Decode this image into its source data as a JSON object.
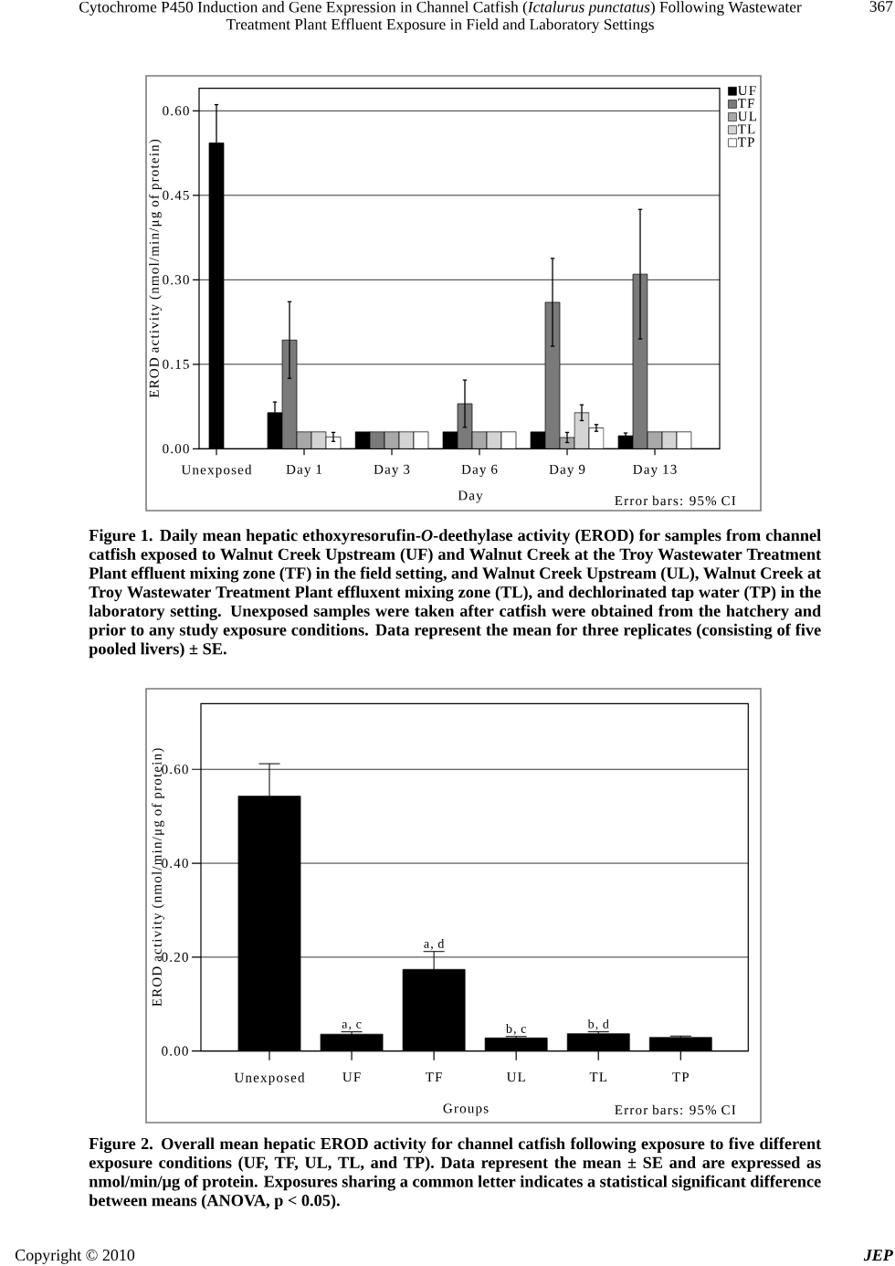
{
  "chart_data": [
    {
      "type": "bar",
      "categories": [
        "Unexposed",
        "Day 1",
        "Day 3",
        "Day 6",
        "Day 9",
        "Day 13"
      ],
      "series": [
        {
          "name": "UF",
          "color": "#000000",
          "values": [
            0.543,
            0.064,
            0.03,
            0.03,
            0.03,
            0.023
          ],
          "errors": [
            0.068,
            0.019,
            null,
            null,
            null,
            0.005
          ]
        },
        {
          "name": "TF",
          "color": "#7a7a7a",
          "values": [
            null,
            0.193,
            0.03,
            0.08,
            0.26,
            0.31
          ],
          "errors": [
            null,
            0.068,
            null,
            0.042,
            0.078,
            0.115
          ]
        },
        {
          "name": "UL",
          "color": "#a8a8a8",
          "values": [
            null,
            0.03,
            0.03,
            0.03,
            0.02,
            0.03
          ],
          "errors": [
            null,
            null,
            null,
            null,
            0.009,
            null
          ]
        },
        {
          "name": "TL",
          "color": "#d4d4d4",
          "values": [
            null,
            0.03,
            0.03,
            0.03,
            0.064,
            0.03
          ],
          "errors": [
            null,
            null,
            null,
            null,
            0.014,
            null
          ]
        },
        {
          "name": "TP",
          "color": "#ffffff",
          "values": [
            null,
            0.021,
            0.03,
            0.03,
            0.037,
            0.03
          ],
          "errors": [
            null,
            0.008,
            null,
            null,
            0.006,
            null
          ]
        }
      ],
      "xlabel": "Day",
      "ylabel": "EROD activity (nmol/min/μg of protein)",
      "ylim": [
        0,
        0.64
      ],
      "yticks": [
        {
          "value": 0,
          "label": "0.00"
        },
        0.15,
        {
          "value": 0.3,
          "label": "0.30"
        },
        0.45,
        {
          "value": 0.6,
          "label": "0.60"
        }
      ],
      "grid": "y",
      "legend": "top right",
      "annotations": [
        "Cytochrome P450 Induction and Gene Expression in Channel Catfish (*Ictalurus punctatus*) Following Wastewater Treatment Plant Effluent Exposure in Field and Laboratory Settings",
        "367",
        "Error bars: 95% CI",
        "Figure 1. Daily mean hepatic ethoxyresorufin-*O*-deethylase activity (EROD) for samples from channel catfish exposed to Walnut Creek Upstream (UF) and Walnut Creek at the Troy Wastewater Treatment Plant effluent mixing zone (TF) in the field setting, and Walnut Creek Upstream (UL), Walnut Creek at Troy Wastewater Treatment Plant effluxent mixing zone (TL), and dechlorinated tap water (TP) in the laboratory setting. Unexposed samples were taken after catfish were obtained from the hatchery and prior to any study exposure conditions. Data represent the mean for three replicates (consisting of five pooled livers) ± SE."
      ]
    },
    {
      "type": "bar",
      "categories": [
        "Unexposed",
        "UF",
        "TF",
        "UL",
        "TL",
        "TP"
      ],
      "values": [
        0.543,
        0.036,
        0.174,
        0.028,
        0.037,
        0.029
      ],
      "errors": [
        0.069,
        0.005,
        0.038,
        0.003,
        0.004,
        0.003
      ],
      "color": "#000000",
      "xlabel": "Groups",
      "ylabel": "EROD activity (nmol/min/μg of protein)",
      "ylim": [
        0,
        0.74
      ],
      "yticks": [
        {
          "value": 0,
          "label": "0.00"
        },
        {
          "value": 0.2,
          "label": "0.20"
        },
        {
          "value": 0.4,
          "label": "0.40"
        },
        {
          "value": 0.6,
          "label": "0.60"
        }
      ],
      "grid": "y",
      "annotations": [
        {
          "text": "a, c",
          "x": "UF",
          "y": 0.041
        },
        {
          "text": "a, d",
          "x": "TF",
          "y": 0.212
        },
        {
          "text": "b, c",
          "x": "UL",
          "y": 0.031
        },
        {
          "text": "b, d",
          "x": "TL",
          "y": 0.041
        },
        "Error bars: 95% CI",
        "Figure 2. Overall mean hepatic EROD activity for channel catfish following exposure to five different exposure conditions (UF, TF, UL, TL, and TP). Data represent the mean ± SE and are expressed as nmol/min/μg of protein. Exposures sharing a common letter indicates a statistical significant difference between means (ANOVA, p < 0.05).",
        "Copyright © 2010",
        "JEP"
      ]
    }
  ]
}
